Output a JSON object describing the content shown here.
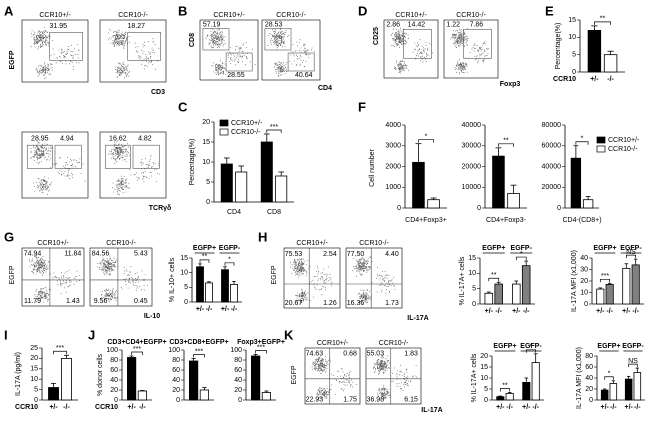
{
  "panels": [
    {
      "letter": "A",
      "y_label": "EGFP",
      "x_labels": [
        "CD3",
        "TCRγδ"
      ],
      "plots": [
        {
          "title": "CCR10+/-",
          "numbers": [
            "31.95"
          ]
        },
        {
          "title": "CCR10-/-",
          "numbers": [
            "18.27"
          ]
        },
        {
          "numbers": [
            "28.95",
            "4.94"
          ]
        },
        {
          "numbers": [
            "16.62",
            "4.82"
          ]
        }
      ]
    },
    {
      "letter": "B",
      "y_label": "CD8",
      "x_labels": [
        "CD4"
      ],
      "plots": [
        {
          "title": "CCR10+/-",
          "numbers": [
            "57.19",
            "28.55"
          ]
        },
        {
          "title": "CCR10-/-",
          "numbers": [
            "28.53",
            "40.64"
          ]
        }
      ]
    },
    {
      "letter": "C",
      "charts": [
        {
          "y_label": "Percentage(%)",
          "groups": [
            "CD4",
            "CD8"
          ],
          "ylim": [
            0,
            20
          ],
          "yticks": [
            0,
            5,
            10,
            15,
            20
          ],
          "series": [
            {
              "name": "CCR10+/-",
              "color": "#000000",
              "values": [
                9.5,
                15
              ],
              "errors": [
                1.5,
                2
              ]
            },
            {
              "name": "CCR10-/-",
              "color": "#ffffff",
              "values": [
                7.5,
                6.5
              ],
              "errors": [
                1.5,
                1
              ]
            }
          ],
          "annotations": [
            "***"
          ]
        }
      ]
    },
    {
      "letter": "D",
      "y_label": "CD25",
      "x_labels": [
        "Foxp3"
      ],
      "plots": [
        {
          "title": "CCR10+/-",
          "numbers": [
            "2.86",
            "14.42"
          ]
        },
        {
          "title": "CCR10-/-",
          "numbers": [
            "1.22",
            "7.86"
          ]
        }
      ]
    },
    {
      "letter": "E",
      "charts": [
        {
          "y_label": "Percentage(%)",
          "x_label": "CCR10",
          "bar_labels": [
            "+/-",
            "-/-"
          ],
          "ylim": [
            0,
            15
          ],
          "yticks": [
            0,
            5,
            10,
            15
          ],
          "series": [
            {
              "color": "#000000",
              "values": [
                12
              ],
              "errors": [
                1.3
              ]
            },
            {
              "color": "#ffffff",
              "values": [
                5
              ],
              "errors": [
                1
              ]
            }
          ],
          "annotations": [
            "**"
          ]
        }
      ]
    },
    {
      "letter": "F",
      "y_label": "Cell number",
      "charts": [
        {
          "x_label": "CD4+Foxp3+",
          "ylim": [
            0,
            4000
          ],
          "yticks": [
            0,
            1000,
            2000,
            3000,
            4000
          ],
          "series": [
            {
              "name": "CCR10+/-",
              "color": "#000000",
              "values": [
                2200
              ],
              "errors": [
                900
              ]
            },
            {
              "name": "CCR10-/-",
              "color": "#ffffff",
              "values": [
                400
              ],
              "errors": [
                80
              ]
            }
          ],
          "annotations": [
            "*"
          ]
        },
        {
          "x_label": "CD4+Foxp3-",
          "ylim": [
            0,
            40000
          ],
          "yticks": [
            0,
            10000,
            20000,
            30000,
            40000
          ],
          "series": [
            {
              "color": "#000000",
              "values": [
                25000
              ],
              "errors": [
                4000
              ]
            },
            {
              "color": "#ffffff",
              "values": [
                7000
              ],
              "errors": [
                4000
              ]
            }
          ],
          "annotations": [
            "**"
          ]
        },
        {
          "x_label": "CD4-(CD8+)",
          "ylim": [
            0,
            80000
          ],
          "yticks": [
            0,
            20000,
            40000,
            60000,
            80000
          ],
          "series": [
            {
              "color": "#000000",
              "values": [
                48000
              ],
              "errors": [
                12000
              ]
            },
            {
              "color": "#ffffff",
              "values": [
                8000
              ],
              "errors": [
                3000
              ]
            }
          ],
          "annotations": [
            "*"
          ]
        }
      ]
    },
    {
      "letter": "G",
      "y_label": "EGFP",
      "x_labels": [
        "IL-10"
      ],
      "plots": [
        {
          "title": "CCR10+/-",
          "numbers": [
            "74.94",
            "11.84",
            "11.79",
            "1.43"
          ]
        },
        {
          "title": "CCR10-/-",
          "numbers": [
            "84.56",
            "5.43",
            "9.56",
            "0.45"
          ]
        }
      ],
      "charts": [
        {
          "y_label": "% IL-10+ cells",
          "groups": [
            "EGFP+",
            "EGFP-"
          ],
          "bar_labels": [
            "+/-",
            "-/-"
          ],
          "ylim": [
            0,
            15
          ],
          "yticks": [
            0,
            5,
            10,
            15
          ],
          "series": [
            {
              "color": "#000000",
              "values": [
                12,
                11
              ],
              "errors": [
                1,
                1
              ]
            },
            {
              "color": "#ffffff",
              "values": [
                6.5,
                6
              ],
              "errors": [
                0.4,
                1
              ]
            }
          ],
          "annotations": [
            "**",
            "*"
          ]
        }
      ]
    },
    {
      "letter": "H",
      "y_label": "EGFP",
      "x_labels": [
        "IL-17A"
      ],
      "plots": [
        {
          "title": "CCR10+/-",
          "numbers": [
            "75.53",
            "2.54",
            "20.67",
            "1.26"
          ]
        },
        {
          "title": "CCR10-/-",
          "numbers": [
            "77.50",
            "4.40",
            "16.36",
            "1.73"
          ]
        }
      ],
      "charts": [
        {
          "y_label": "% IL-17A+ cells",
          "groups": [
            "EGFP+",
            "EGFP-"
          ],
          "bar_labels": [
            "+/-",
            "-/-"
          ],
          "ylim": [
            0,
            15
          ],
          "yticks": [
            0,
            5,
            10,
            15
          ],
          "series": [
            {
              "color": "#ffffff",
              "values": [
                3.5,
                6.5
              ],
              "errors": [
                0.4,
                1
              ]
            },
            {
              "color": "#808080",
              "values": [
                6.5,
                12.5
              ],
              "errors": [
                0.6,
                1.5
              ]
            }
          ],
          "annotations": [
            "**",
            "*"
          ]
        },
        {
          "y_label": "IL-17A MFI (x1,000)",
          "groups": [
            "EGFP+",
            "EGFP-"
          ],
          "bar_labels": [
            "+/-",
            "-/-"
          ],
          "ylim": [
            0,
            40
          ],
          "yticks": [
            0,
            10,
            20,
            30,
            40
          ],
          "series": [
            {
              "color": "#ffffff",
              "values": [
                13,
                31
              ],
              "errors": [
                1,
                4
              ]
            },
            {
              "color": "#808080",
              "values": [
                17,
                34
              ],
              "errors": [
                1,
                5
              ]
            }
          ],
          "annotations": [
            "***",
            "NS"
          ]
        }
      ]
    },
    {
      "letter": "I",
      "charts": [
        {
          "y_label": "IL-17A (pg/ml)",
          "x_label": "CCR10",
          "bar_labels": [
            "+/-",
            "-/-"
          ],
          "ylim": [
            0,
            25
          ],
          "yticks": [
            0,
            5,
            10,
            15,
            20,
            25
          ],
          "series": [
            {
              "color": "#000000",
              "values": [
                6
              ],
              "errors": [
                2
              ]
            },
            {
              "color": "#ffffff",
              "values": [
                20
              ],
              "errors": [
                1.5
              ]
            }
          ],
          "annotations": [
            "***"
          ]
        }
      ]
    },
    {
      "letter": "J",
      "y_label": "% donor cells",
      "charts": [
        {
          "title": "CD3+CD4+EGFP+",
          "x_label": "CCR10",
          "bar_labels": [
            "+/-",
            "-/-"
          ],
          "ylim": [
            0,
            100
          ],
          "yticks": [
            0,
            20,
            40,
            60,
            80,
            100
          ],
          "series": [
            {
              "color": "#000000",
              "values": [
                85
              ],
              "errors": [
                3
              ]
            },
            {
              "color": "#ffffff",
              "values": [
                18
              ],
              "errors": [
                1
              ]
            }
          ],
          "annotations": [
            "***"
          ]
        },
        {
          "title": "CD3+CD8+EGFP+",
          "ylim": [
            0,
            100
          ],
          "yticks": [
            0,
            20,
            40,
            60,
            80,
            100
          ],
          "series": [
            {
              "color": "#000000",
              "values": [
                78
              ],
              "errors": [
                5
              ]
            },
            {
              "color": "#ffffff",
              "values": [
                20
              ],
              "errors": [
                5
              ]
            }
          ],
          "annotations": [
            "***"
          ]
        },
        {
          "title": "Foxp3+EGFP+",
          "ylim": [
            0,
            100
          ],
          "yticks": [
            0,
            20,
            40,
            60,
            80,
            100
          ],
          "series": [
            {
              "color": "#000000",
              "values": [
                88
              ],
              "errors": [
                3
              ]
            },
            {
              "color": "#ffffff",
              "values": [
                15
              ],
              "errors": [
                3
              ]
            }
          ],
          "annotations": [
            "***"
          ]
        }
      ]
    },
    {
      "letter": "K",
      "y_label": "EGFP",
      "x_labels": [
        "IL-17A"
      ],
      "plots": [
        {
          "title": "CCR10+/-",
          "numbers": [
            "74.63",
            "0.68",
            "22.93",
            "1.75"
          ]
        },
        {
          "title": "CCR10-/-",
          "numbers": [
            "55.03",
            "1.83",
            "36.98",
            "6.15"
          ]
        }
      ],
      "charts": [
        {
          "y_label": "% IL-17A+ cells",
          "groups": [
            "EGFP+",
            "EGFP-"
          ],
          "bar_labels": [
            "+/-",
            "-/-"
          ],
          "ylim": [
            0,
            20
          ],
          "yticks": [
            0,
            5,
            10,
            15,
            20
          ],
          "series": [
            {
              "color": "#000000",
              "values": [
                1.5,
                8
              ],
              "errors": [
                0.3,
                2
              ]
            },
            {
              "color": "#ffffff",
              "values": [
                3,
                17
              ],
              "errors": [
                0.4,
                4
              ]
            }
          ],
          "annotations": [
            "**",
            "*"
          ]
        },
        {
          "y_label": "IL-17A MFI (x1,000)",
          "groups": [
            "EGFP+",
            "EGFP-"
          ],
          "bar_labels": [
            "+/-",
            "-/-"
          ],
          "ylim": [
            0,
            80
          ],
          "yticks": [
            0,
            20,
            40,
            60,
            80
          ],
          "series": [
            {
              "color": "#000000",
              "values": [
                18,
                38
              ],
              "errors": [
                2,
                5
              ]
            },
            {
              "color": "#ffffff",
              "values": [
                30,
                50
              ],
              "errors": [
                5,
                8
              ]
            }
          ],
          "annotations": [
            "*",
            "NS"
          ]
        }
      ]
    }
  ]
}
